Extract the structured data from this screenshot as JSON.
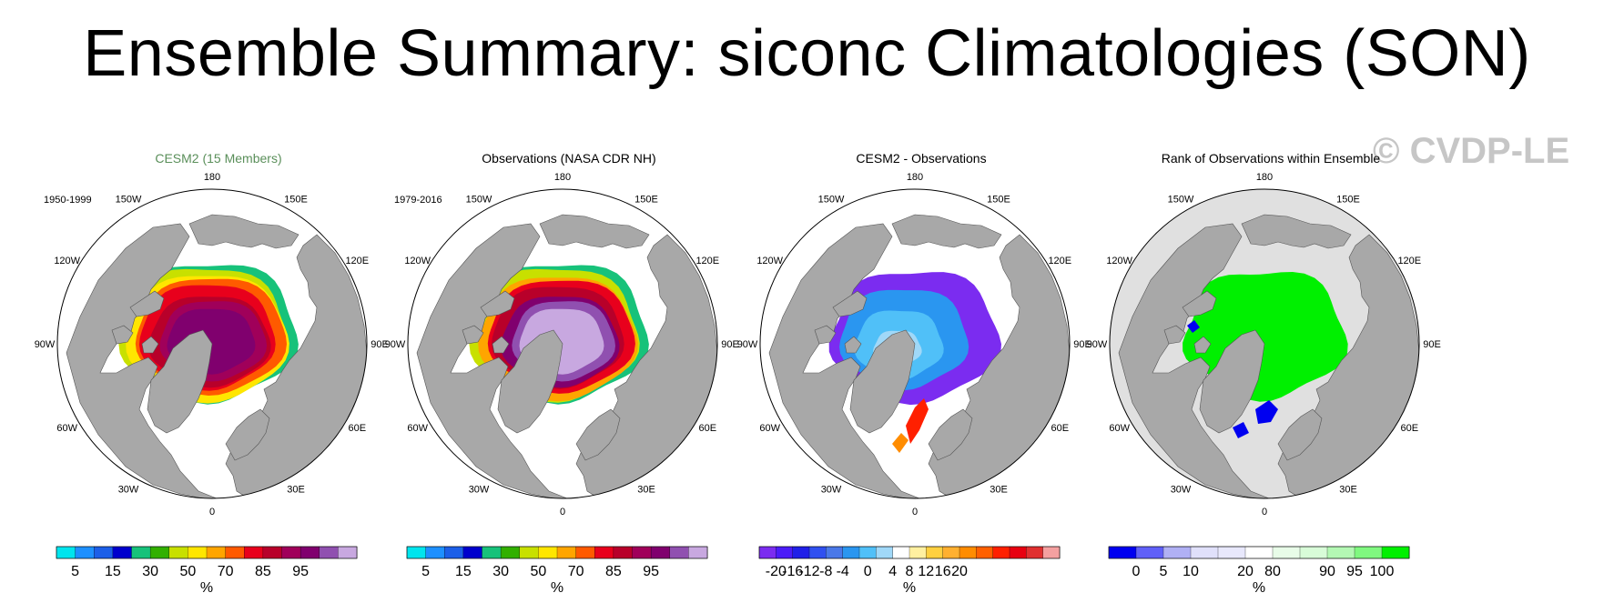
{
  "title": "Ensemble Summary: siconc Climatologies (SON)",
  "watermark": "© CVDP-LE",
  "lon_labels": [
    "180",
    "150E",
    "120E",
    "90E",
    "60E",
    "30E",
    "0",
    "30W",
    "60W",
    "90W",
    "120W",
    "150W"
  ],
  "colors": {
    "land": "#a8a8a8",
    "ocean": "#ffffff",
    "rank_ocean": "#e0e0e0"
  },
  "panels": [
    {
      "title": "CESM2 (15 Members)",
      "period": "1950-1999",
      "field": "conc_model",
      "colorbar": {
        "colors": [
          "#00e5ee",
          "#1e90ff",
          "#1c5fe8",
          "#0000cd",
          "#17c27a",
          "#32b000",
          "#c8e000",
          "#ffe600",
          "#ffa500",
          "#ff5a00",
          "#e8001c",
          "#b8002a",
          "#a0005a",
          "#80006e",
          "#9050b0",
          "#c8a8e0"
        ],
        "labels": [
          "5",
          "15",
          "30",
          "50",
          "70",
          "85",
          "95"
        ],
        "label_positions": [
          1,
          3,
          5,
          7,
          9,
          11,
          13
        ],
        "unit": "%"
      }
    },
    {
      "title": "Observations (NASA CDR NH)",
      "period": "1979-2016",
      "field": "conc_obs",
      "colorbar": {
        "colors": [
          "#00e5ee",
          "#1e90ff",
          "#1c5fe8",
          "#0000cd",
          "#17c27a",
          "#32b000",
          "#c8e000",
          "#ffe600",
          "#ffa500",
          "#ff5a00",
          "#e8001c",
          "#b8002a",
          "#a0005a",
          "#80006e",
          "#9050b0",
          "#c8a8e0"
        ],
        "labels": [
          "5",
          "15",
          "30",
          "50",
          "70",
          "85",
          "95"
        ],
        "label_positions": [
          1,
          3,
          5,
          7,
          9,
          11,
          13
        ],
        "unit": "%"
      }
    },
    {
      "title": "CESM2 - Observations",
      "period": "",
      "field": "diff",
      "colorbar": {
        "colors": [
          "#7b2cf0",
          "#4b1cf8",
          "#2020e8",
          "#3050f0",
          "#4a78e8",
          "#2a96f0",
          "#50c0f8",
          "#a0d8f8",
          "#ffffff",
          "#fff0a0",
          "#ffd040",
          "#ffb030",
          "#ff8c00",
          "#ff6000",
          "#ff2000",
          "#e80010",
          "#e03030",
          "#f4a0a0"
        ],
        "labels": [
          "-20",
          "-16",
          "-12",
          "-8",
          "-4",
          "0",
          "4",
          "8",
          "12",
          "16",
          "20"
        ],
        "label_positions": [
          1,
          2,
          3,
          4,
          5,
          6.5,
          8,
          9,
          10,
          11,
          12
        ],
        "unit": "%"
      }
    },
    {
      "title": "Rank of Observations within Ensemble",
      "period": "",
      "field": "rank",
      "colorbar": {
        "colors": [
          "#0000f0",
          "#6060f8",
          "#b0b0f4",
          "#e0e0fa",
          "#e8e8fc",
          "#ffffff",
          "#e8fce8",
          "#d8fcd8",
          "#b4f8b4",
          "#80f880",
          "#00f000"
        ],
        "labels": [
          "0",
          "5",
          "10",
          "20",
          "80",
          "90",
          "95",
          "100"
        ],
        "label_positions": [
          1,
          2,
          3,
          5,
          6,
          8,
          9,
          10
        ],
        "unit": "%"
      }
    }
  ]
}
